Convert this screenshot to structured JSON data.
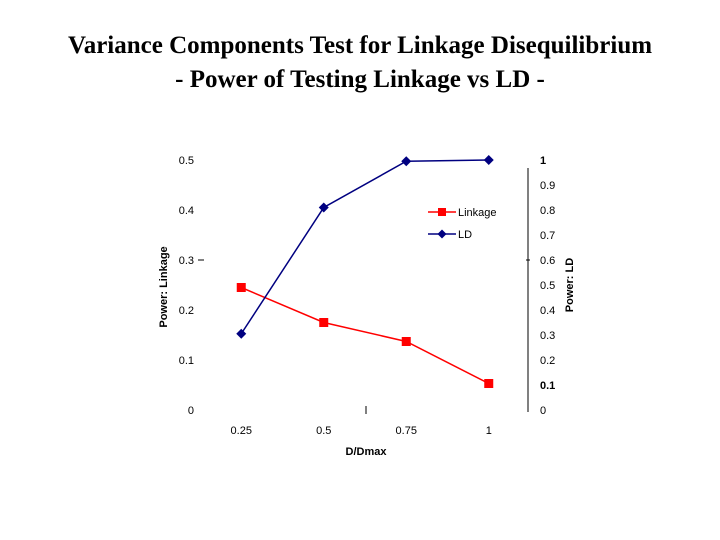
{
  "title_line1": "Variance Components Test for Linkage Disequilibrium",
  "title_line2": "- Power of Testing Linkage vs LD -",
  "chart_data": {
    "type": "line",
    "x": [
      0.25,
      0.5,
      0.75,
      1
    ],
    "x_tick_labels": [
      "0.25",
      "0.5",
      "0.75",
      "1"
    ],
    "xlabel": "D/Dmax",
    "y_left_label": "Power: Linkage",
    "y_left_ticks": [
      "0.5",
      "0.4",
      "0.3",
      "0.2",
      "0.1",
      "0"
    ],
    "y_left_lim": [
      0,
      0.5
    ],
    "y_right_label": "Power: LD",
    "y_right_ticks": [
      "1",
      "0.9",
      "0.8",
      "0.7",
      "0.6",
      "0.5",
      "0.4",
      "0.3",
      "0.2",
      "0.1",
      "0"
    ],
    "y_right_lim": [
      0,
      1
    ],
    "series": [
      {
        "name": "Linkage",
        "axis": "left",
        "color": "#ff0000",
        "marker": "square",
        "values": [
          0.245,
          0.175,
          0.137,
          0.053
        ]
      },
      {
        "name": "LD",
        "axis": "right",
        "color": "#000080",
        "marker": "diamond",
        "values": [
          0.305,
          0.81,
          0.995,
          1.0
        ]
      }
    ],
    "legend_position": "upper-right, inside plot",
    "grid": false
  }
}
